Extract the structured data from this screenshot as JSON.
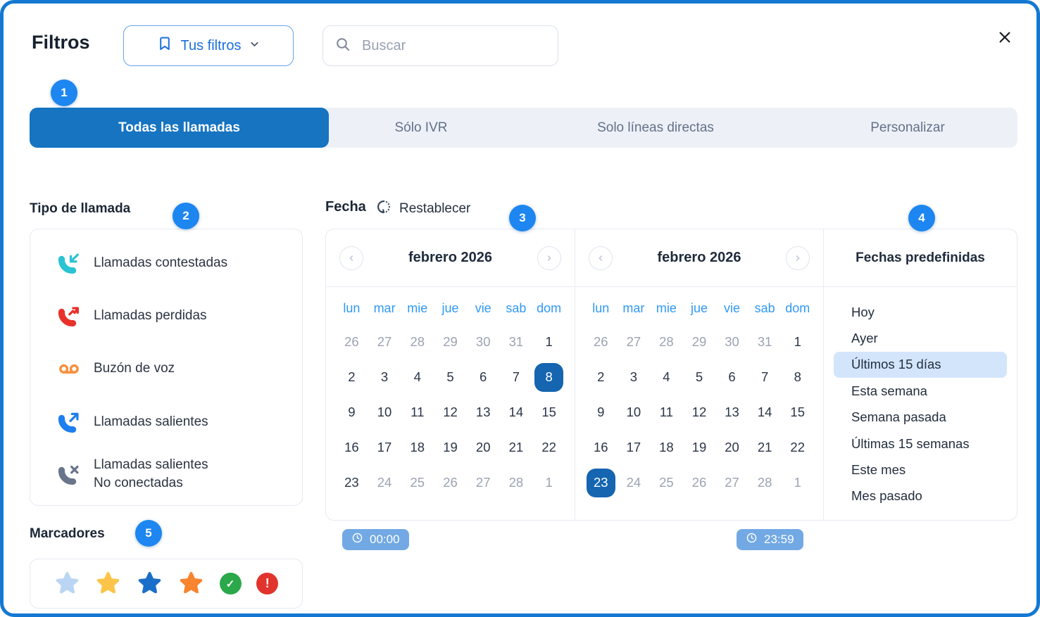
{
  "header": {
    "title": "Filtros",
    "filters_button": {
      "label": "Tus filtros"
    },
    "search": {
      "placeholder": "Buscar"
    }
  },
  "tabs": [
    {
      "label": "Todas las llamadas",
      "selected": true
    },
    {
      "label": "Sólo IVR",
      "selected": false
    },
    {
      "label": "Solo líneas directas",
      "selected": false
    },
    {
      "label": "Personalizar",
      "selected": false
    }
  ],
  "badges": [
    "1",
    "2",
    "3",
    "4",
    "5"
  ],
  "call_type": {
    "title": "Tipo de llamada",
    "items": [
      {
        "icon": "incoming-call-icon",
        "color": "#29c3d3",
        "label": "Llamadas contestadas"
      },
      {
        "icon": "missed-call-icon",
        "color": "#e8312a",
        "label": "Llamadas perdidas"
      },
      {
        "icon": "voicemail-icon",
        "color": "#f78f3d",
        "label": "Buzón de voz"
      },
      {
        "icon": "outgoing-call-icon",
        "color": "#1d7ef0",
        "label": "Llamadas salientes"
      },
      {
        "icon": "not-connected-call-icon",
        "color": "#68758a",
        "label": "Llamadas salientes",
        "label2": "No conectadas"
      }
    ]
  },
  "markers": {
    "title": "Marcadores",
    "items": [
      {
        "kind": "star",
        "name": "light-blue-star-icon",
        "color": "#b9d5f3"
      },
      {
        "kind": "star",
        "name": "yellow-star-icon",
        "color": "#fcc549"
      },
      {
        "kind": "star",
        "name": "blue-star-icon",
        "color": "#1b6fc9"
      },
      {
        "kind": "star",
        "name": "orange-star-icon",
        "color": "#f8842f"
      },
      {
        "kind": "check",
        "name": "green-check-icon",
        "color": "#2ba84a",
        "glyph": "✓"
      },
      {
        "kind": "alert",
        "name": "red-alert-icon",
        "color": "#e2332c",
        "glyph": "!"
      }
    ]
  },
  "date": {
    "title": "Fecha",
    "reset_label": "Restablecer",
    "weekdays": [
      "lun",
      "mar",
      "mie",
      "jue",
      "vie",
      "sab",
      "dom"
    ],
    "calendars": [
      {
        "month": "febrero 2026",
        "rows": [
          [
            [
              "26",
              "m"
            ],
            [
              "27",
              "m"
            ],
            [
              "28",
              "m"
            ],
            [
              "29",
              "m"
            ],
            [
              "30",
              "m"
            ],
            [
              "31",
              "m"
            ],
            [
              "1",
              "n"
            ]
          ],
          [
            [
              "2",
              "n"
            ],
            [
              "3",
              "n"
            ],
            [
              "4",
              "n"
            ],
            [
              "5",
              "n"
            ],
            [
              "6",
              "n"
            ],
            [
              "7",
              "n"
            ],
            [
              "8",
              "s"
            ]
          ],
          [
            [
              "9",
              "n"
            ],
            [
              "10",
              "n"
            ],
            [
              "11",
              "n"
            ],
            [
              "12",
              "n"
            ],
            [
              "13",
              "n"
            ],
            [
              "14",
              "n"
            ],
            [
              "15",
              "n"
            ]
          ],
          [
            [
              "16",
              "n"
            ],
            [
              "17",
              "n"
            ],
            [
              "18",
              "n"
            ],
            [
              "19",
              "n"
            ],
            [
              "20",
              "n"
            ],
            [
              "21",
              "n"
            ],
            [
              "22",
              "n"
            ]
          ],
          [
            [
              "23",
              "n"
            ],
            [
              "24",
              "m"
            ],
            [
              "25",
              "m"
            ],
            [
              "26",
              "m"
            ],
            [
              "27",
              "m"
            ],
            [
              "28",
              "m"
            ],
            [
              "1",
              "m"
            ]
          ]
        ]
      },
      {
        "month": "febrero 2026",
        "rows": [
          [
            [
              "26",
              "m"
            ],
            [
              "27",
              "m"
            ],
            [
              "28",
              "m"
            ],
            [
              "29",
              "m"
            ],
            [
              "30",
              "m"
            ],
            [
              "31",
              "m"
            ],
            [
              "1",
              "n"
            ]
          ],
          [
            [
              "2",
              "n"
            ],
            [
              "3",
              "n"
            ],
            [
              "4",
              "n"
            ],
            [
              "5",
              "n"
            ],
            [
              "6",
              "n"
            ],
            [
              "7",
              "n"
            ],
            [
              "8",
              "n"
            ]
          ],
          [
            [
              "9",
              "n"
            ],
            [
              "10",
              "n"
            ],
            [
              "11",
              "n"
            ],
            [
              "12",
              "n"
            ],
            [
              "13",
              "n"
            ],
            [
              "14",
              "n"
            ],
            [
              "15",
              "n"
            ]
          ],
          [
            [
              "16",
              "n"
            ],
            [
              "17",
              "n"
            ],
            [
              "18",
              "n"
            ],
            [
              "19",
              "n"
            ],
            [
              "20",
              "n"
            ],
            [
              "21",
              "n"
            ],
            [
              "22",
              "n"
            ]
          ],
          [
            [
              "23",
              "s"
            ],
            [
              "24",
              "m"
            ],
            [
              "25",
              "m"
            ],
            [
              "26",
              "m"
            ],
            [
              "27",
              "m"
            ],
            [
              "28",
              "m"
            ],
            [
              "1",
              "m"
            ]
          ]
        ]
      }
    ],
    "time_from": "00:00",
    "time_to": "23:59",
    "presets": {
      "title": "Fechas predefinidas",
      "items": [
        "Hoy",
        "Ayer",
        "Últimos 15 días",
        "Esta semana",
        "Semana pasada",
        "Últimas 15 semanas",
        "Este mes",
        "Mes pasado"
      ],
      "selected_index": 2
    }
  },
  "colors": {
    "accent": "#1d86f0",
    "border": "#1478d2",
    "tabSelected": "#1674c1",
    "daySelected": "#1565b0",
    "weekday": "#2f99f5",
    "presetHighlight": "#d3e5fb",
    "timeBadge": "#72a9e5"
  }
}
